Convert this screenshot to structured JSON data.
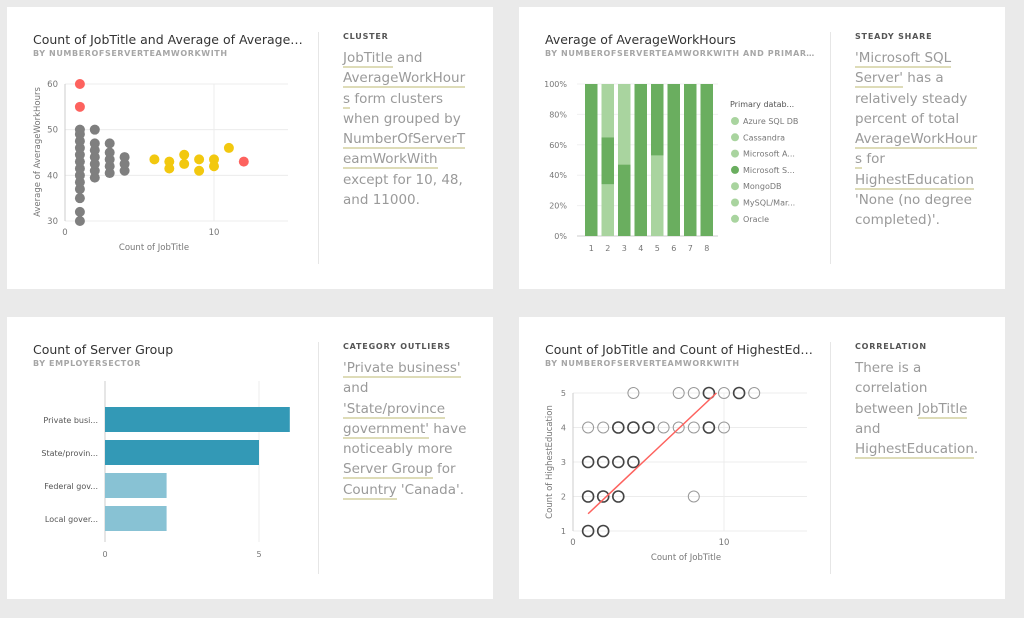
{
  "cards": [
    {
      "title": "Count of JobTitle and Average of AverageWor...",
      "subtitle": "BY NUMBEROFSERVERTEAMWORKWITH",
      "insight_label": "CLUSTER",
      "insight": [
        {
          "t": "JobTitle",
          "hl": true
        },
        {
          "t": " and "
        },
        {
          "t": "AverageWorkHours",
          "hl": true
        },
        {
          "t": " form clusters when grouped by "
        },
        {
          "t": "NumberOfServerTeamWorkWith",
          "hl": true
        },
        {
          "t": " except for 10, 48, and 11000."
        }
      ]
    },
    {
      "title": "Average of AverageWorkHours",
      "subtitle": "BY NUMBEROFSERVERTEAMWORKWITH AND PRIMARY D...",
      "insight_label": "STEADY SHARE",
      "insight": [
        {
          "t": "'Microsoft SQL Server'",
          "hl": true
        },
        {
          "t": " has a relatively steady percent of total "
        },
        {
          "t": "AverageWorkHours",
          "hl": true
        },
        {
          "t": " for "
        },
        {
          "t": "HighestEducation",
          "hl": true
        },
        {
          "t": " 'None (no degree completed)'."
        }
      ]
    },
    {
      "title": "Count of Server Group",
      "subtitle": "BY EMPLOYERSECTOR",
      "insight_label": "CATEGORY OUTLIERS",
      "insight": [
        {
          "t": "'Private business'",
          "hl": true
        },
        {
          "t": " and "
        },
        {
          "t": "'State/province government'",
          "hl": true
        },
        {
          "t": " have noticeably more "
        },
        {
          "t": "Server Group",
          "hl": true
        },
        {
          "t": " for "
        },
        {
          "t": "Country",
          "hl": true
        },
        {
          "t": " 'Canada'."
        }
      ]
    },
    {
      "title": "Count of JobTitle and Count of HighestEducati...",
      "subtitle": "BY NUMBEROFSERVERTEAMWORKWITH",
      "insight_label": "CORRELATION",
      "insight": [
        {
          "t": "There is a correlation between "
        },
        {
          "t": "JobTitle",
          "hl": true
        },
        {
          "t": " and "
        },
        {
          "t": "HighestEducation",
          "hl": true
        },
        {
          "t": "."
        }
      ]
    }
  ],
  "chart_data": [
    {
      "type": "scatter",
      "xlabel": "Count of JobTitle",
      "ylabel": "Average of AverageWorkHours",
      "xlim": [
        0,
        15
      ],
      "ylim": [
        30,
        60
      ],
      "xticks": [
        "0",
        "10"
      ],
      "yticks": [
        "30",
        "40",
        "50",
        "60"
      ],
      "colors": {
        "gray": "#7f7f7f",
        "red": "#fd625e",
        "yellow": "#f2c80f"
      },
      "points": [
        {
          "x": 1,
          "y": 60,
          "c": "red"
        },
        {
          "x": 1,
          "y": 55,
          "c": "red"
        },
        {
          "x": 12,
          "y": 43,
          "c": "red"
        },
        {
          "x": 1,
          "y": 30,
          "c": "gray"
        },
        {
          "x": 1,
          "y": 32,
          "c": "gray"
        },
        {
          "x": 1,
          "y": 35,
          "c": "gray"
        },
        {
          "x": 1,
          "y": 37,
          "c": "gray"
        },
        {
          "x": 1,
          "y": 38.5,
          "c": "gray"
        },
        {
          "x": 1,
          "y": 40,
          "c": "gray"
        },
        {
          "x": 1,
          "y": 41.5,
          "c": "gray"
        },
        {
          "x": 1,
          "y": 43,
          "c": "gray"
        },
        {
          "x": 1,
          "y": 44.5,
          "c": "gray"
        },
        {
          "x": 1,
          "y": 46,
          "c": "gray"
        },
        {
          "x": 1,
          "y": 47.5,
          "c": "gray"
        },
        {
          "x": 1,
          "y": 49,
          "c": "gray"
        },
        {
          "x": 1,
          "y": 50,
          "c": "gray"
        },
        {
          "x": 2,
          "y": 39.5,
          "c": "gray"
        },
        {
          "x": 2,
          "y": 41,
          "c": "gray"
        },
        {
          "x": 2,
          "y": 42.5,
          "c": "gray"
        },
        {
          "x": 2,
          "y": 44,
          "c": "gray"
        },
        {
          "x": 2,
          "y": 45.5,
          "c": "gray"
        },
        {
          "x": 2,
          "y": 47,
          "c": "gray"
        },
        {
          "x": 2,
          "y": 50,
          "c": "gray"
        },
        {
          "x": 3,
          "y": 40.5,
          "c": "gray"
        },
        {
          "x": 3,
          "y": 42,
          "c": "gray"
        },
        {
          "x": 3,
          "y": 43.5,
          "c": "gray"
        },
        {
          "x": 3,
          "y": 45,
          "c": "gray"
        },
        {
          "x": 3,
          "y": 47,
          "c": "gray"
        },
        {
          "x": 4,
          "y": 41,
          "c": "gray"
        },
        {
          "x": 4,
          "y": 42.5,
          "c": "gray"
        },
        {
          "x": 4,
          "y": 44,
          "c": "gray"
        },
        {
          "x": 6,
          "y": 43.5,
          "c": "yellow"
        },
        {
          "x": 7,
          "y": 43,
          "c": "yellow"
        },
        {
          "x": 7,
          "y": 41.5,
          "c": "yellow"
        },
        {
          "x": 8,
          "y": 44.5,
          "c": "yellow"
        },
        {
          "x": 8,
          "y": 42.5,
          "c": "yellow"
        },
        {
          "x": 9,
          "y": 43.5,
          "c": "yellow"
        },
        {
          "x": 9,
          "y": 41,
          "c": "yellow"
        },
        {
          "x": 10,
          "y": 43.5,
          "c": "yellow"
        },
        {
          "x": 10,
          "y": 42,
          "c": "yellow"
        },
        {
          "x": 11,
          "y": 46,
          "c": "yellow"
        }
      ]
    },
    {
      "type": "bar",
      "stacked_percent": true,
      "categories": [
        "1",
        "2",
        "3",
        "4",
        "5",
        "6",
        "7",
        "8"
      ],
      "yticks": [
        "0%",
        "20%",
        "40%",
        "60%",
        "80%",
        "100%"
      ],
      "legend_title": "Primary datab...",
      "legend": [
        "Azure SQL DB",
        "Cassandra",
        "Microsoft A...",
        "Microsoft S...",
        "MongoDB",
        "MySQL/Mar...",
        "Oracle"
      ],
      "colors": {
        "dark": "#6aae5f",
        "light": "#a9d49f"
      },
      "legend_dark_index": 3,
      "stacks": [
        [
          {
            "v": 100,
            "c": "dark"
          }
        ],
        [
          {
            "v": 34,
            "c": "light"
          },
          {
            "v": 31,
            "c": "dark"
          },
          {
            "v": 35,
            "c": "light"
          }
        ],
        [
          {
            "v": 47,
            "c": "dark"
          },
          {
            "v": 53,
            "c": "light"
          }
        ],
        [
          {
            "v": 100,
            "c": "dark"
          }
        ],
        [
          {
            "v": 53,
            "c": "light"
          },
          {
            "v": 47,
            "c": "dark"
          }
        ],
        [
          {
            "v": 100,
            "c": "dark"
          }
        ],
        [
          {
            "v": 100,
            "c": "dark"
          }
        ],
        [
          {
            "v": 100,
            "c": "dark"
          }
        ]
      ]
    },
    {
      "type": "bar",
      "orientation": "horizontal",
      "categories": [
        "Private busi...",
        "State/provin...",
        "Federal gov...",
        "Local gover..."
      ],
      "values": [
        6,
        5,
        2,
        2
      ],
      "xticks": [
        "0",
        "5"
      ],
      "xlim": [
        0,
        6.7
      ],
      "colors": [
        "#3399b6",
        "#3399b6",
        "#88c2d4",
        "#88c2d4"
      ]
    },
    {
      "type": "scatter",
      "xlabel": "Count of JobTitle",
      "ylabel": "Count of HighestEducation",
      "xlim": [
        0,
        15
      ],
      "ylim": [
        1,
        5
      ],
      "xticks": [
        "0",
        "10"
      ],
      "yticks": [
        "1",
        "2",
        "3",
        "4",
        "5"
      ],
      "points": [
        [
          4,
          5,
          0
        ],
        [
          7,
          5,
          0
        ],
        [
          8,
          5,
          0
        ],
        [
          9,
          5,
          1
        ],
        [
          10,
          5,
          0
        ],
        [
          11,
          5,
          1
        ],
        [
          12,
          5,
          0
        ],
        [
          1,
          4,
          0
        ],
        [
          2,
          4,
          0
        ],
        [
          3,
          4,
          1
        ],
        [
          4,
          4,
          1
        ],
        [
          5,
          4,
          1
        ],
        [
          6,
          4,
          0
        ],
        [
          7,
          4,
          0
        ],
        [
          8,
          4,
          0
        ],
        [
          9,
          4,
          1
        ],
        [
          10,
          4,
          0
        ],
        [
          1,
          3,
          1
        ],
        [
          2,
          3,
          1
        ],
        [
          3,
          3,
          1
        ],
        [
          4,
          3,
          1
        ],
        [
          1,
          2,
          1
        ],
        [
          2,
          2,
          1
        ],
        [
          3,
          2,
          1
        ],
        [
          8,
          2,
          0
        ],
        [
          1,
          1,
          1
        ],
        [
          2,
          1,
          1
        ]
      ],
      "trend": {
        "from": [
          1,
          1.5
        ],
        "to": [
          9.5,
          5
        ],
        "color": "#fd625e"
      }
    }
  ]
}
